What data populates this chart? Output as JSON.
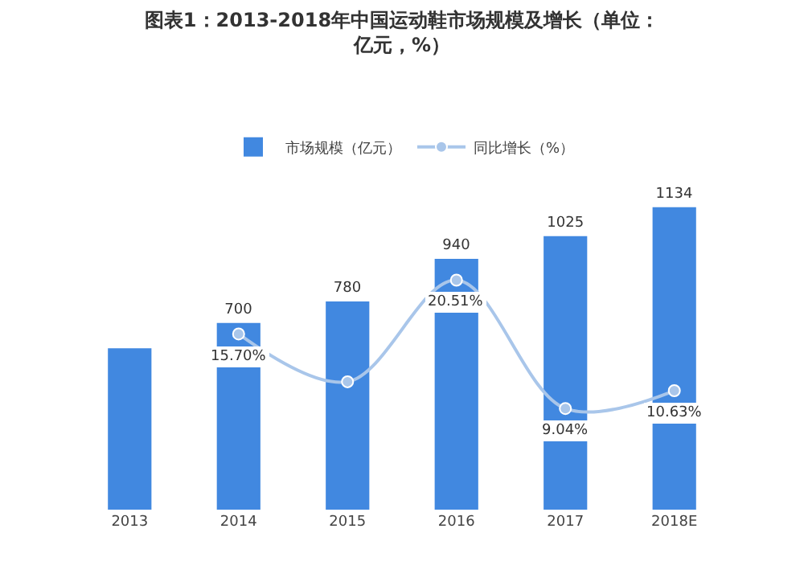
{
  "chart_data": {
    "type": "bar",
    "title": "图表1：2013-2018年中国运动鞋市场规模及增长（单位：亿元，%）",
    "categories": [
      "2013",
      "2014",
      "2015",
      "2016",
      "2017",
      "2018E"
    ],
    "series": [
      {
        "name": "市场规模（亿元）",
        "color": "#4188e0",
        "values": [
          605,
          700,
          780,
          940,
          1025,
          1134
        ],
        "value_labels": [
          null,
          "700",
          "780",
          "940",
          "1025",
          "1134"
        ]
      },
      {
        "name": "同比增长（%）",
        "type": "line",
        "axis": "y2",
        "color": "#a9c6ea",
        "values": [
          null,
          15.7,
          11.43,
          20.51,
          9.04,
          10.63
        ],
        "value_labels": [
          null,
          "15.70%",
          null,
          "20.51%",
          "9.04%",
          "10.63%"
        ]
      }
    ],
    "tick_labels": "x",
    "grid": false,
    "legend": "top",
    "marker": "circle",
    "line_style": "solid"
  }
}
